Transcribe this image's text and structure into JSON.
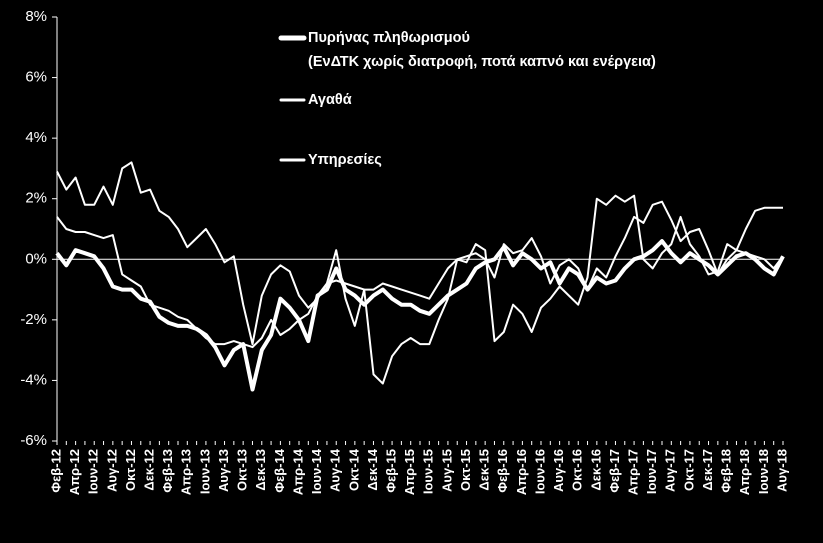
{
  "chart_data": {
    "type": "line",
    "categories": [
      "Φεβ-12",
      null,
      "Απρ-12",
      null,
      "Ιουν-12",
      null,
      "Αυγ-12",
      null,
      "Οκτ-12",
      null,
      "Δεκ-12",
      null,
      "Φεβ-13",
      null,
      "Απρ-13",
      null,
      "Ιουν-13",
      null,
      "Αυγ-13",
      null,
      "Οκτ-13",
      null,
      "Δεκ-13",
      null,
      "Φεβ-14",
      null,
      "Απρ-14",
      null,
      "Ιουν-14",
      null,
      "Αυγ-14",
      null,
      "Οκτ-14",
      null,
      "Δεκ-14",
      null,
      "Φεβ-15",
      null,
      "Απρ-15",
      null,
      "Ιουν-15",
      null,
      "Αυγ-15",
      null,
      "Οκτ-15",
      null,
      "Δεκ-15",
      null,
      "Φεβ-16",
      null,
      "Απρ-16",
      null,
      "Ιουν-16",
      null,
      "Αυγ-16",
      null,
      "Οκτ-16",
      null,
      "Δεκ-16",
      null,
      "Φεβ-17",
      null,
      "Απρ-17",
      null,
      "Ιουν-17",
      null,
      "Αυγ-17",
      null,
      "Οκτ-17",
      null,
      "Δεκ-17",
      null,
      "Φεβ-18",
      null,
      "Απρ-18",
      null,
      "Ιουν-18",
      null,
      "Αυγ-18"
    ],
    "series": [
      {
        "name": "Πυρήνας πληθωρισμού",
        "note": "(ΕνΔΤΚ χωρίς διατροφή, ποτά καπνό και ενέργεια)",
        "color": "#ffffff",
        "width": 4,
        "values": [
          0.2,
          -0.2,
          0.3,
          0.2,
          0.1,
          -0.3,
          -0.9,
          -1.0,
          -1.0,
          -1.3,
          -1.4,
          -1.9,
          -2.1,
          -2.2,
          -2.2,
          -2.3,
          -2.5,
          -2.9,
          -3.5,
          -3.0,
          -2.8,
          -4.3,
          -3.0,
          -2.5,
          -1.3,
          -1.6,
          -2.0,
          -2.7,
          -1.2,
          -1.0,
          -0.3,
          -1.0,
          -1.2,
          -1.5,
          -1.2,
          -1.0,
          -1.3,
          -1.5,
          -1.5,
          -1.7,
          -1.8,
          -1.5,
          -1.2,
          -1.0,
          -0.8,
          -0.3,
          -0.1,
          0.0,
          0.4,
          -0.2,
          0.2,
          0.0,
          -0.3,
          -0.1,
          -0.8,
          -0.3,
          -0.5,
          -1.0,
          -0.6,
          -0.8,
          -0.7,
          -0.3,
          0.0,
          0.1,
          0.3,
          0.6,
          0.2,
          -0.1,
          0.2,
          0.0,
          -0.2,
          -0.5,
          -0.2,
          0.1,
          0.2,
          0.0,
          -0.3,
          -0.5,
          0.1
        ]
      },
      {
        "name": "Αγαθά",
        "color": "#ffffff",
        "width": 2,
        "values": [
          1.4,
          1.0,
          0.9,
          0.9,
          0.8,
          0.7,
          0.8,
          -0.5,
          -0.7,
          -0.9,
          -1.5,
          -1.6,
          -1.7,
          -1.9,
          -2.0,
          -2.3,
          -2.6,
          -2.8,
          -2.8,
          -2.7,
          -2.8,
          -2.9,
          -2.6,
          -2.0,
          -2.5,
          -2.3,
          -2.0,
          -1.8,
          -1.2,
          -0.8,
          -0.7,
          -0.8,
          -0.9,
          -1.0,
          -1.0,
          -0.8,
          -0.9,
          -1.0,
          -1.1,
          -1.2,
          -1.3,
          -0.8,
          -0.3,
          0.0,
          0.1,
          0.2,
          0.0,
          -0.6,
          0.5,
          0.2,
          0.3,
          0.7,
          0.1,
          -0.8,
          -0.2,
          0.0,
          -0.3,
          -1.0,
          -0.3,
          -0.6,
          0.1,
          0.7,
          1.4,
          1.2,
          1.8,
          1.9,
          1.3,
          0.6,
          0.9,
          1.0,
          0.3,
          -0.5,
          0.0,
          0.3,
          0.2,
          0.1,
          0.0,
          -0.3,
          0.1
        ]
      },
      {
        "name": "Υπηρεσίες",
        "color": "#ffffff",
        "width": 2,
        "values": [
          2.9,
          2.3,
          2.7,
          1.8,
          1.8,
          2.4,
          1.8,
          3.0,
          3.2,
          2.2,
          2.3,
          1.6,
          1.4,
          1.0,
          0.4,
          0.7,
          1.0,
          0.5,
          -0.1,
          0.1,
          -1.5,
          -2.8,
          -1.2,
          -0.5,
          -0.2,
          -0.4,
          -1.2,
          -1.6,
          -1.3,
          -0.8,
          0.3,
          -1.3,
          -2.2,
          -1.0,
          -3.8,
          -4.1,
          -3.2,
          -2.8,
          -2.6,
          -2.8,
          -2.8,
          -2.0,
          -1.3,
          0.0,
          -0.1,
          0.5,
          0.3,
          -2.7,
          -2.4,
          -1.5,
          -1.8,
          -2.4,
          -1.6,
          -1.3,
          -0.9,
          -1.2,
          -1.5,
          -0.6,
          2.0,
          1.8,
          2.1,
          1.9,
          2.1,
          0.0,
          -0.3,
          0.2,
          0.5,
          1.4,
          0.5,
          0.1,
          -0.5,
          -0.4,
          0.5,
          0.3,
          1.0,
          1.6,
          1.7,
          1.7,
          1.7
        ]
      }
    ],
    "ylim": [
      -6,
      8
    ],
    "yticks": [
      {
        "value": -6,
        "label": "-6%"
      },
      {
        "value": -4,
        "label": "-4%"
      },
      {
        "value": -2,
        "label": "-2%"
      },
      {
        "value": 0,
        "label": "0%"
      },
      {
        "value": 2,
        "label": "2%"
      },
      {
        "value": 4,
        "label": "4%"
      },
      {
        "value": 6,
        "label": "6%"
      },
      {
        "value": 8,
        "label": "8%"
      }
    ],
    "grid": false
  }
}
